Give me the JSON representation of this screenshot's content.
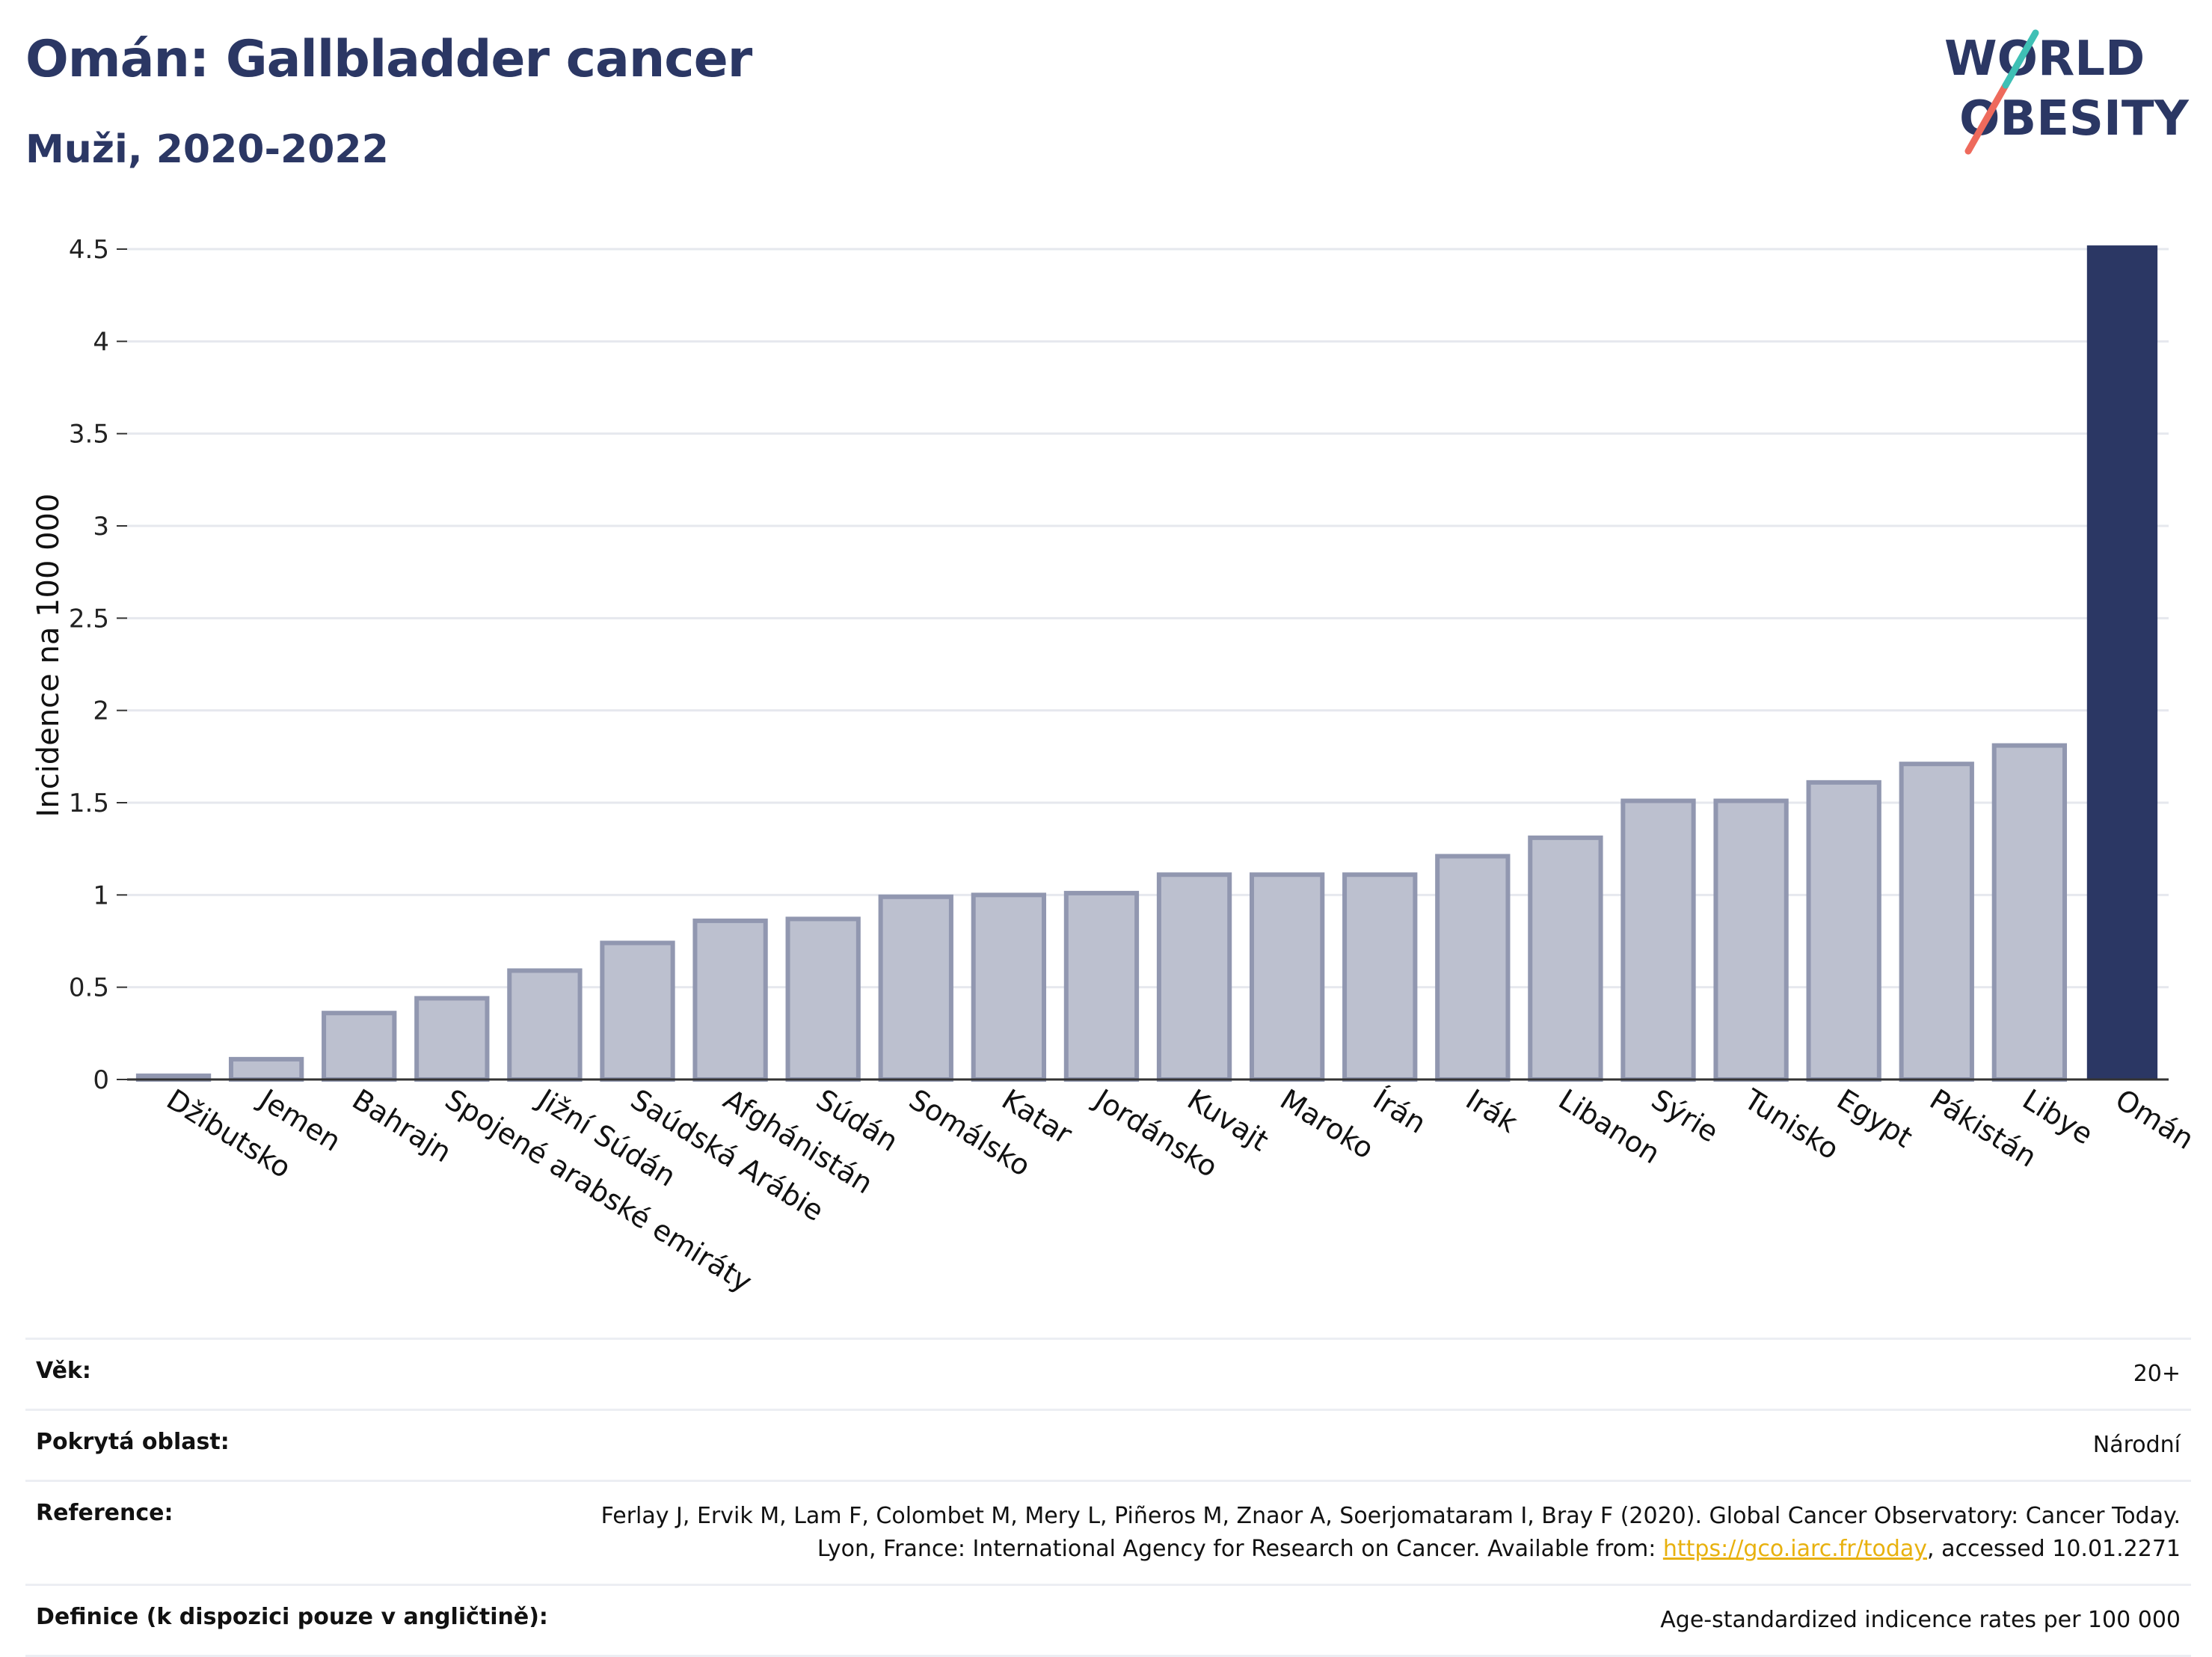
{
  "header": {
    "title": "Omán: Gallbladder cancer",
    "subtitle": "Muži, 2020-2022"
  },
  "logo": {
    "line1": "WORLD",
    "line2": "OBESITY"
  },
  "chart_data": {
    "type": "bar",
    "title": "Omán: Gallbladder cancer",
    "subtitle": "Muži, 2020-2022",
    "xlabel": "",
    "ylabel": "Incidence na 100 000",
    "ylim": [
      0,
      4.5
    ],
    "yticks": [
      0,
      0.5,
      1,
      1.5,
      2,
      2.5,
      3,
      3.5,
      4,
      4.5
    ],
    "ytick_labels": [
      "0",
      "0.5",
      "1",
      "1.5",
      "2",
      "2.5",
      "3",
      "3.5",
      "4",
      "4.5"
    ],
    "grid": true,
    "categories": [
      "Džibutsko",
      "Jemen",
      "Bahrajn",
      "Spojené arabské emiráty",
      "Jižní Súdán",
      "Saúdská Arábie",
      "Afghánistán",
      "Súdán",
      "Somálsko",
      "Katar",
      "Jordánsko",
      "Kuvajt",
      "Maroko",
      "Írán",
      "Irák",
      "Libanon",
      "Sýrie",
      "Tunisko",
      "Egypt",
      "Pákistán",
      "Libye",
      "Omán"
    ],
    "values": [
      0.02,
      0.11,
      0.36,
      0.44,
      0.59,
      0.74,
      0.86,
      0.87,
      0.99,
      1.0,
      1.01,
      1.11,
      1.11,
      1.11,
      1.21,
      1.31,
      1.51,
      1.51,
      1.61,
      1.71,
      1.81,
      4.52
    ],
    "highlight": "Omán",
    "colors": {
      "highlight": "#2b3764",
      "default_fill": "#bcc0cf",
      "default_stroke": "#9197b0"
    }
  },
  "info": {
    "age_label": "Věk:",
    "age_value": "20+",
    "area_label": "Pokrytá oblast:",
    "area_value": "Národní",
    "reference_label": "Reference:",
    "reference_text": "Ferlay J, Ervik M, Lam F, Colombet M, Mery L, Piñeros M, Znaor A, Soerjomataram I, Bray F (2020). Global Cancer Observatory: Cancer Today. Lyon, France: International Agency for Research on Cancer. Available from: ",
    "reference_link": "https://gco.iarc.fr/today",
    "reference_suffix": ", accessed 10.01.2271",
    "definition_label": "Definice (k dispozici pouze v angličtině):",
    "definition_value": "Age-standardized indicence rates per 100 000"
  }
}
